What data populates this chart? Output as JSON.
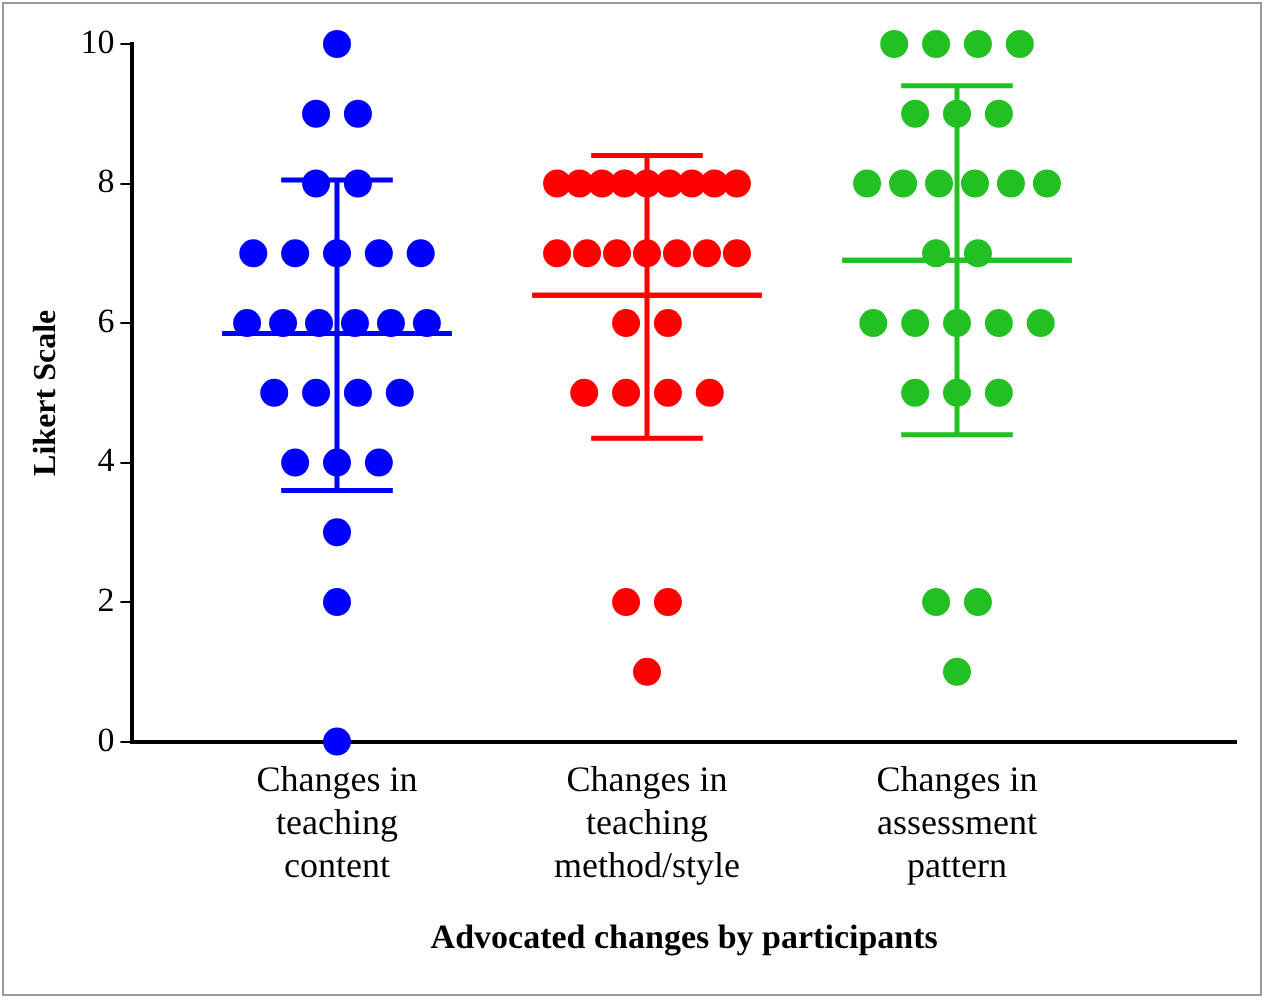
{
  "chart_data": {
    "type": "scatter",
    "xlabel": "Advocated changes by participants",
    "ylabel": "Likert Scale",
    "categories": [
      "Changes in teaching content",
      "Changes in teaching method/style",
      "Changes in assessment pattern"
    ],
    "ylim": [
      0,
      10
    ],
    "yticks": [
      0,
      2,
      4,
      6,
      8,
      10
    ],
    "grid": false,
    "legend": false,
    "marker": "circle",
    "series": [
      {
        "color": "#0000ff",
        "x": [
          "Changes in teaching content",
          "Changes in teaching content",
          "Changes in teaching content",
          "Changes in teaching content",
          "Changes in teaching content",
          "Changes in teaching content",
          "Changes in teaching content",
          "Changes in teaching content",
          "Changes in teaching content",
          "Changes in teaching content",
          "Changes in teaching content",
          "Changes in teaching content",
          "Changes in teaching content",
          "Changes in teaching content",
          "Changes in teaching content",
          "Changes in teaching content",
          "Changes in teaching content",
          "Changes in teaching content",
          "Changes in teaching content",
          "Changes in teaching content",
          "Changes in teaching content",
          "Changes in teaching content",
          "Changes in teaching content",
          "Changes in teaching content",
          "Changes in teaching content",
          "Changes in teaching content"
        ],
        "values": [
          10,
          9,
          9,
          8,
          8,
          7,
          7,
          7,
          7,
          7,
          6,
          6,
          6,
          6,
          6,
          6,
          5,
          5,
          5,
          5,
          4,
          4,
          4,
          3,
          2,
          0
        ]
      },
      {
        "color": "#ff0000",
        "x": [
          "Changes in teaching method/style",
          "Changes in teaching method/style",
          "Changes in teaching method/style",
          "Changes in teaching method/style",
          "Changes in teaching method/style",
          "Changes in teaching method/style",
          "Changes in teaching method/style",
          "Changes in teaching method/style",
          "Changes in teaching method/style",
          "Changes in teaching method/style",
          "Changes in teaching method/style",
          "Changes in teaching method/style",
          "Changes in teaching method/style",
          "Changes in teaching method/style",
          "Changes in teaching method/style",
          "Changes in teaching method/style",
          "Changes in teaching method/style",
          "Changes in teaching method/style",
          "Changes in teaching method/style",
          "Changes in teaching method/style",
          "Changes in teaching method/style",
          "Changes in teaching method/style",
          "Changes in teaching method/style",
          "Changes in teaching method/style",
          "Changes in teaching method/style"
        ],
        "values": [
          8,
          8,
          8,
          8,
          8,
          8,
          8,
          8,
          8,
          7,
          7,
          7,
          7,
          7,
          7,
          7,
          6,
          6,
          5,
          5,
          5,
          5,
          2,
          2,
          1
        ]
      },
      {
        "color": "#22c022",
        "x": [
          "Changes in assessment pattern",
          "Changes in assessment pattern",
          "Changes in assessment pattern",
          "Changes in assessment pattern",
          "Changes in assessment pattern",
          "Changes in assessment pattern",
          "Changes in assessment pattern",
          "Changes in assessment pattern",
          "Changes in assessment pattern",
          "Changes in assessment pattern",
          "Changes in assessment pattern",
          "Changes in assessment pattern",
          "Changes in assessment pattern",
          "Changes in assessment pattern",
          "Changes in assessment pattern",
          "Changes in assessment pattern",
          "Changes in assessment pattern",
          "Changes in assessment pattern",
          "Changes in assessment pattern",
          "Changes in assessment pattern",
          "Changes in assessment pattern",
          "Changes in assessment pattern",
          "Changes in assessment pattern",
          "Changes in assessment pattern",
          "Changes in assessment pattern",
          "Changes in assessment pattern"
        ],
        "values": [
          10,
          10,
          10,
          10,
          9,
          9,
          9,
          8,
          8,
          8,
          8,
          8,
          8,
          7,
          7,
          6,
          6,
          6,
          6,
          6,
          5,
          5,
          5,
          2,
          2,
          1
        ]
      },
      {
        "type": "box",
        "colors": [
          "#0000ff",
          "#ff0000",
          "#22c022"
        ],
        "boxes": [
          {
            "low": 3.6,
            "q1": 5.85,
            "median": 5.85,
            "q3": 5.85,
            "high": 8.05
          },
          {
            "low": 4.35,
            "q1": 6.4,
            "median": 6.4,
            "q3": 6.4,
            "high": 8.4
          },
          {
            "low": 4.4,
            "q1": 6.9,
            "median": 6.9,
            "q3": 6.9,
            "high": 9.4
          }
        ]
      }
    ]
  }
}
